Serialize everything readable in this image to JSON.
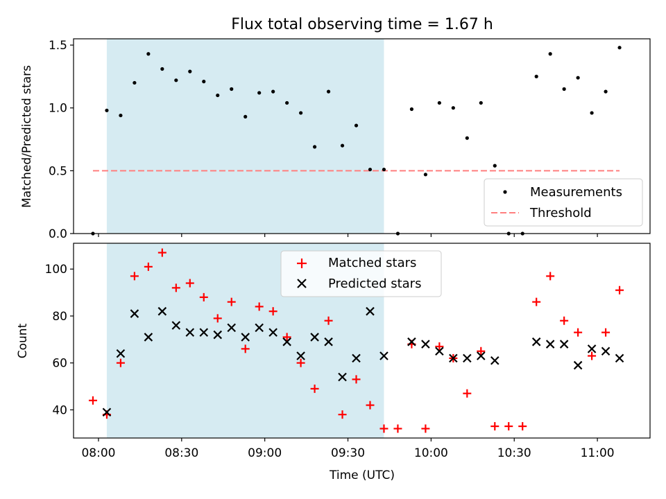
{
  "figure_title": "Flux total observing time = 1.67 h",
  "colors": {
    "highlight": "#add8e6",
    "measurement": "#000000",
    "threshold": "#ff7f7f",
    "matched": "#ff0000",
    "predicted": "#000000"
  },
  "chart_data": [
    {
      "type": "scatter",
      "ylabel": "Matched/Predicted stars",
      "ylim": [
        0,
        1.55
      ],
      "yticks": [
        0.0,
        0.5,
        1.0,
        1.5
      ],
      "yticklabels": [
        "0.0",
        "0.5",
        "1.0",
        "1.5"
      ],
      "shaded_interval": [
        "08:03",
        "09:43"
      ],
      "threshold": {
        "value": 0.5,
        "from": "07:58",
        "to": "11:08"
      },
      "legend": {
        "position": "lower-right",
        "entries": [
          "Measurements",
          "Threshold"
        ]
      },
      "series": [
        {
          "name": "Measurements",
          "x": [
            "07:58",
            "08:03",
            "08:08",
            "08:13",
            "08:18",
            "08:23",
            "08:28",
            "08:33",
            "08:38",
            "08:43",
            "08:48",
            "08:53",
            "08:58",
            "09:03",
            "09:08",
            "09:13",
            "09:18",
            "09:23",
            "09:28",
            "09:33",
            "09:38",
            "09:43",
            "09:48",
            "09:53",
            "09:58",
            "10:03",
            "10:08",
            "10:13",
            "10:18",
            "10:23",
            "10:28",
            "10:33",
            "10:38",
            "10:43",
            "10:48",
            "10:53",
            "10:58",
            "11:03",
            "11:08"
          ],
          "y": [
            0.0,
            0.98,
            0.94,
            1.2,
            1.43,
            1.31,
            1.22,
            1.29,
            1.21,
            1.1,
            1.15,
            0.93,
            1.12,
            1.13,
            1.04,
            0.96,
            0.69,
            1.13,
            0.7,
            0.86,
            0.51,
            0.51,
            0.0,
            0.99,
            0.47,
            1.04,
            1.0,
            0.76,
            1.04,
            0.54,
            0.0,
            0.0,
            1.25,
            1.43,
            1.15,
            1.24,
            0.96,
            1.13,
            1.48
          ]
        }
      ]
    },
    {
      "type": "scatter",
      "ylabel": "Count",
      "xlabel": "Time (UTC)",
      "ylim": [
        28,
        111
      ],
      "yticks": [
        40,
        60,
        80,
        100
      ],
      "yticklabels": [
        "40",
        "60",
        "80",
        "100"
      ],
      "xlim": [
        "07:51",
        "11:19"
      ],
      "xticks": [
        "08:00",
        "08:30",
        "09:00",
        "09:30",
        "10:00",
        "10:30",
        "11:00"
      ],
      "xticklabels": [
        "08:00",
        "08:30",
        "09:00",
        "09:30",
        "10:00",
        "10:30",
        "11:00"
      ],
      "shaded_interval": [
        "08:03",
        "09:43"
      ],
      "legend": {
        "position": "top-center",
        "entries": [
          "Matched stars",
          "Predicted stars"
        ]
      },
      "series": [
        {
          "name": "Matched stars",
          "x": [
            "07:58",
            "08:03",
            "08:08",
            "08:13",
            "08:18",
            "08:23",
            "08:28",
            "08:33",
            "08:38",
            "08:43",
            "08:48",
            "08:53",
            "08:58",
            "09:03",
            "09:08",
            "09:13",
            "09:18",
            "09:23",
            "09:28",
            "09:33",
            "09:38",
            "09:43",
            "09:48",
            "09:53",
            "09:58",
            "10:03",
            "10:08",
            "10:13",
            "10:18",
            "10:23",
            "10:28",
            "10:33",
            "10:38",
            "10:43",
            "10:48",
            "10:53",
            "10:58",
            "11:03",
            "11:08"
          ],
          "y": [
            44,
            38,
            60,
            97,
            101,
            107,
            92,
            94,
            88,
            79,
            86,
            66,
            84,
            82,
            71,
            60,
            49,
            78,
            38,
            53,
            42,
            32,
            32,
            68,
            32,
            67,
            62,
            47,
            65,
            33,
            33,
            33,
            86,
            97,
            78,
            73,
            63,
            73,
            91
          ]
        },
        {
          "name": "Predicted stars",
          "x": [
            "08:03",
            "08:08",
            "08:13",
            "08:18",
            "08:23",
            "08:28",
            "08:33",
            "08:38",
            "08:43",
            "08:48",
            "08:53",
            "08:58",
            "09:03",
            "09:08",
            "09:13",
            "09:18",
            "09:23",
            "09:28",
            "09:33",
            "09:38",
            "09:43",
            "09:53",
            "09:58",
            "10:03",
            "10:08",
            "10:13",
            "10:18",
            "10:23",
            "10:38",
            "10:43",
            "10:48",
            "10:53",
            "10:58",
            "11:03",
            "11:08"
          ],
          "y": [
            39,
            64,
            81,
            71,
            82,
            76,
            73,
            73,
            72,
            75,
            71,
            75,
            73,
            69,
            63,
            71,
            69,
            54,
            62,
            82,
            63,
            69,
            68,
            65,
            62,
            62,
            63,
            61,
            69,
            68,
            68,
            59,
            66,
            65,
            62
          ]
        }
      ]
    }
  ]
}
